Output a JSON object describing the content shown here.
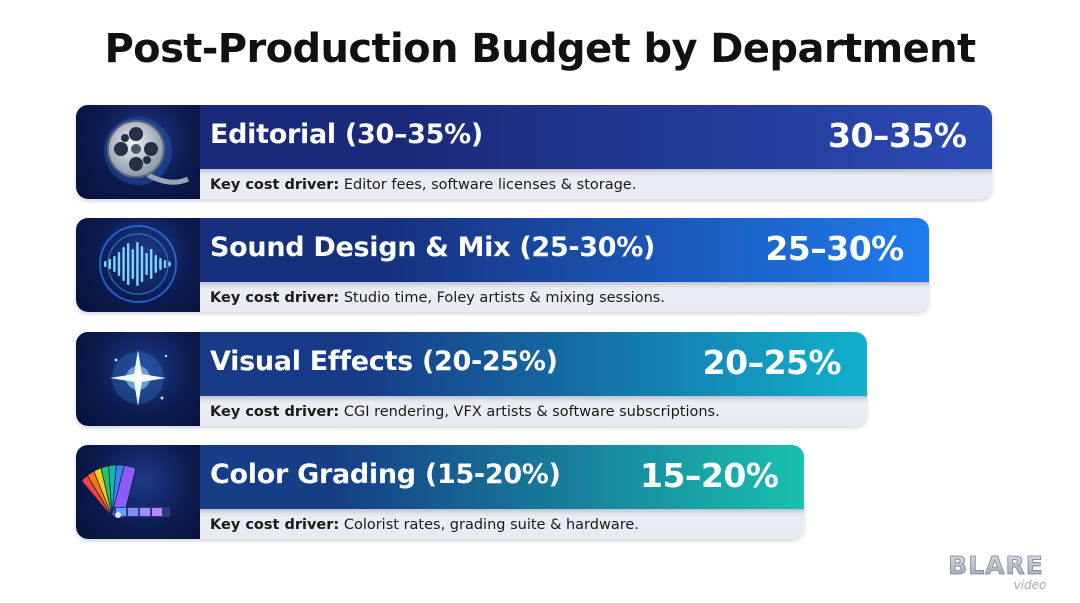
{
  "title": "Post-Production Budget by Department",
  "chart_data": {
    "type": "bar",
    "orientation": "horizontal",
    "title": "Post-Production Budget by Department",
    "categories": [
      "Editorial",
      "Sound Design & Mix",
      "Visual Effects",
      "Color Grading"
    ],
    "series": [
      {
        "low": [
          30,
          25,
          20,
          15
        ],
        "high": [
          35,
          30,
          25,
          20
        ]
      }
    ]
  },
  "rows": [
    {
      "label": "Editorial (30–35%)",
      "value": "30–35%",
      "driver_prefix": "Key cost driver:",
      "driver_text": " Editor fees, software licenses & storage.",
      "icon": "film-reel-icon",
      "color_start": "#1a2a7a",
      "color_end": "#2b4bb5"
    },
    {
      "label": "Sound Design & Mix (25-30%)",
      "value": "25–30%",
      "driver_prefix": "Key cost driver:",
      "driver_text": " Studio time, Foley artists & mixing sessions.",
      "icon": "sound-wave-icon",
      "color_start": "#16307e",
      "color_end": "#1f7ef0"
    },
    {
      "label": "Visual Effects (20-25%)",
      "value": "20–25%",
      "driver_prefix": "Key cost driver:",
      "driver_text": " CGI rendering, VFX artists & software subscriptions.",
      "icon": "sparkle-icon",
      "color_start": "#173a86",
      "color_end": "#12b4cf"
    },
    {
      "label": "Color Grading (15-20%)",
      "value": "15–20%",
      "driver_prefix": "Key cost driver:",
      "driver_text": " Colorist rates, grading suite & hardware.",
      "icon": "color-swatch-icon",
      "color_start": "#163e86",
      "color_end": "#19c3b0"
    }
  ],
  "watermark": {
    "line1": "BLARE",
    "line2": "video"
  }
}
